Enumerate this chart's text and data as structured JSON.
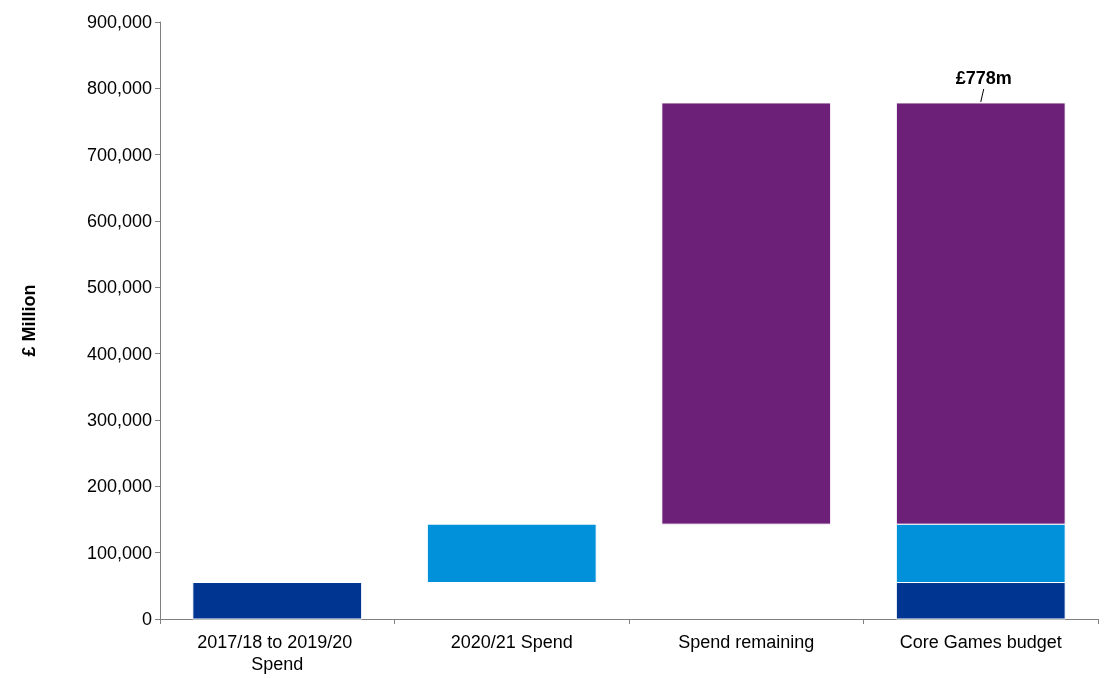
{
  "chart_data": {
    "type": "bar",
    "ylabel": "£ Million",
    "categories": [
      "2017/18 to 2019/20 Spend",
      "2020/21 Spend",
      "Spend remaining",
      "Core Games budget"
    ],
    "series": [
      {
        "color": "#003591",
        "values": [
          55000,
          null,
          null,
          55000
        ],
        "base": [
          0,
          null,
          null,
          0
        ]
      },
      {
        "color": "#0091da",
        "values": [
          null,
          88000,
          null,
          88000
        ],
        "base": [
          null,
          55000,
          null,
          55000
        ]
      },
      {
        "color": "#6d2077",
        "values": [
          null,
          null,
          635000,
          635000
        ],
        "base": [
          null,
          null,
          143000,
          143000
        ]
      }
    ],
    "ylim": [
      0,
      900000
    ],
    "yticks": [
      {
        "value": 0,
        "label": "0"
      },
      {
        "value": 100000,
        "label": "100,000"
      },
      {
        "value": 200000,
        "label": "200,000"
      },
      {
        "value": 300000,
        "label": "300,000"
      },
      {
        "value": 400000,
        "label": "400,000"
      },
      {
        "value": 500000,
        "label": "500,000"
      },
      {
        "value": 600000,
        "label": "600,000"
      },
      {
        "value": 700000,
        "label": "700,000"
      },
      {
        "value": 800000,
        "label": "800,000"
      },
      {
        "value": 900000,
        "label": "900,000"
      }
    ],
    "grid": false,
    "annotations": [
      {
        "text": "£778m",
        "x": "Core Games budget",
        "y": 778000
      }
    ]
  }
}
